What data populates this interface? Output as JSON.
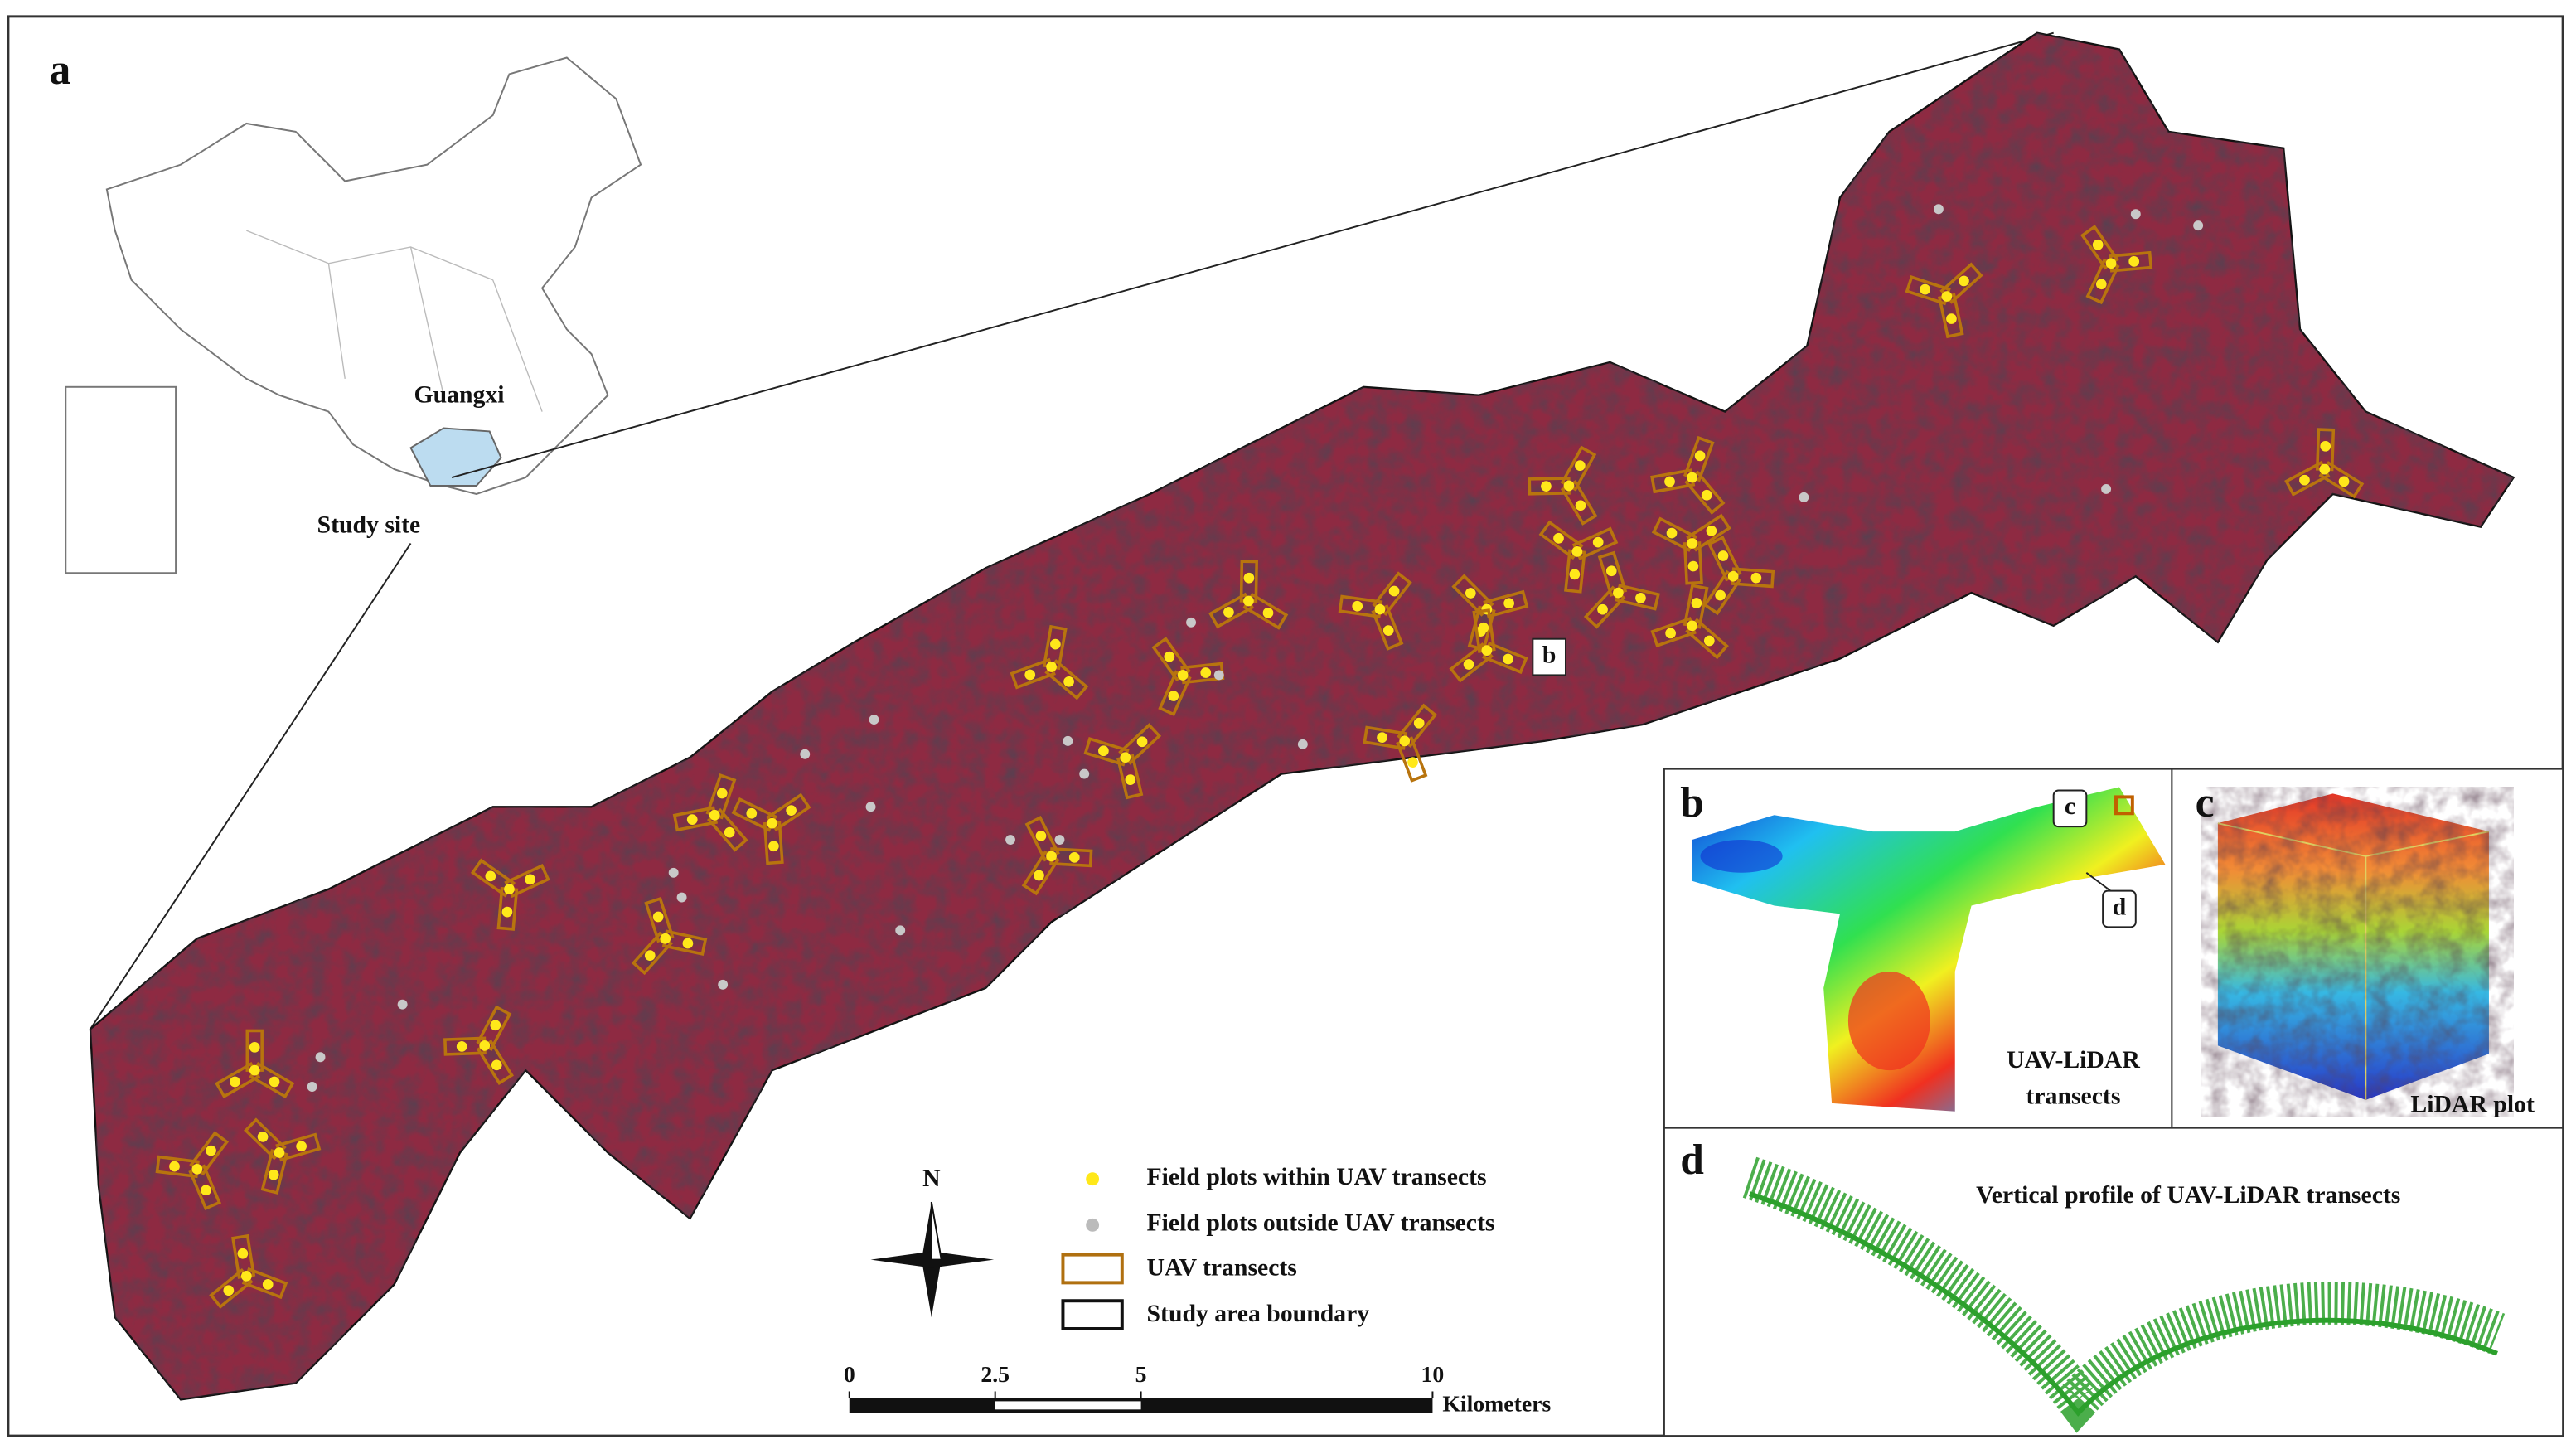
{
  "panel_a": {
    "label": "a",
    "inset": {
      "province": "Guangxi",
      "site": "Study site"
    },
    "callout": "b",
    "north": "N",
    "legend": [
      "Field plots within UAV transects",
      "Field plots outside UAV transects",
      "UAV transects",
      "Study area boundary"
    ],
    "scale_bar": {
      "ticks": [
        0,
        2.5,
        5,
        10
      ],
      "unit": "Kilometers"
    }
  },
  "panel_b": {
    "label": "b",
    "title": [
      "UAV-LiDAR",
      "transects"
    ],
    "callouts": [
      "c",
      "d"
    ]
  },
  "panel_c": {
    "label": "c",
    "title": "LiDAR plot"
  },
  "panel_d": {
    "label": "d",
    "title": "Vertical profile of UAV-LiDAR transects"
  }
}
